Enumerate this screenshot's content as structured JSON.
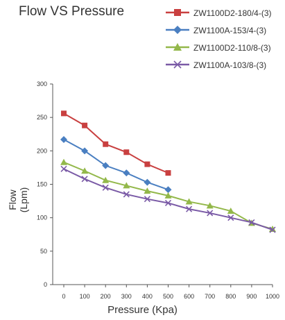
{
  "chart_data": {
    "type": "line",
    "title": "Flow VS Pressure",
    "xlabel": "Pressure (Kpa)",
    "ylabel": "Flow (Lpm)",
    "xlim": [
      0,
      1000
    ],
    "ylim": [
      0,
      300
    ],
    "x_ticks": [
      0,
      100,
      200,
      300,
      400,
      500,
      600,
      700,
      800,
      900,
      1000
    ],
    "y_ticks": [
      0,
      50,
      100,
      150,
      200,
      250,
      300
    ],
    "grid": false,
    "legend_position": "top-right",
    "series": [
      {
        "name": "ZW1100D2-180/4-(3)",
        "color": "#c94040",
        "marker": "square",
        "x": [
          0,
          100,
          200,
          300,
          400,
          500
        ],
        "y": [
          256,
          238,
          210,
          198,
          180,
          167
        ]
      },
      {
        "name": "ZW1100A-153/4-(3)",
        "color": "#4a7fc1",
        "marker": "diamond",
        "x": [
          0,
          100,
          200,
          300,
          400,
          500
        ],
        "y": [
          217,
          200,
          178,
          167,
          153,
          142
        ]
      },
      {
        "name": "ZW1100D2-110/8-(3)",
        "color": "#93b84a",
        "marker": "triangle",
        "x": [
          0,
          100,
          200,
          300,
          400,
          500,
          600,
          700,
          800,
          900,
          1000
        ],
        "y": [
          183,
          170,
          156,
          148,
          140,
          133,
          124,
          118,
          110,
          92,
          83
        ]
      },
      {
        "name": "ZW1100A-103/8-(3)",
        "color": "#7a5aa6",
        "marker": "x",
        "x": [
          0,
          100,
          200,
          300,
          400,
          500,
          600,
          700,
          800,
          900,
          1000
        ],
        "y": [
          173,
          158,
          145,
          135,
          128,
          122,
          113,
          107,
          100,
          93,
          82
        ]
      }
    ]
  }
}
